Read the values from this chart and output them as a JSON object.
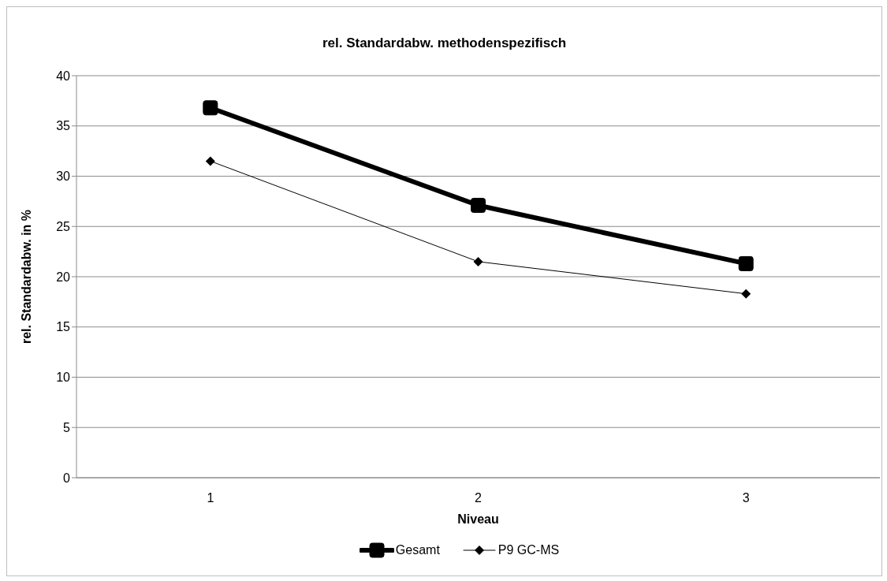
{
  "chart_data": {
    "type": "line",
    "title": "rel. Standardabw. methodenspezifisch",
    "xlabel": "Niveau",
    "ylabel": "rel. Standardabw. in %",
    "categories": [
      "1",
      "2",
      "3"
    ],
    "series": [
      {
        "name": "Gesamt",
        "color": "#000000",
        "marker": "square",
        "values": [
          36.8,
          27.1,
          21.3
        ]
      },
      {
        "name": "P9 GC-MS",
        "color": "#000000",
        "marker": "diamond",
        "values": [
          31.5,
          21.5,
          18.3
        ]
      }
    ],
    "ylim": [
      0,
      40
    ],
    "yticks": [
      0,
      5,
      10,
      15,
      20,
      25,
      30,
      35,
      40
    ],
    "grid": "y",
    "legend": "bottom",
    "line_style": "solid"
  }
}
